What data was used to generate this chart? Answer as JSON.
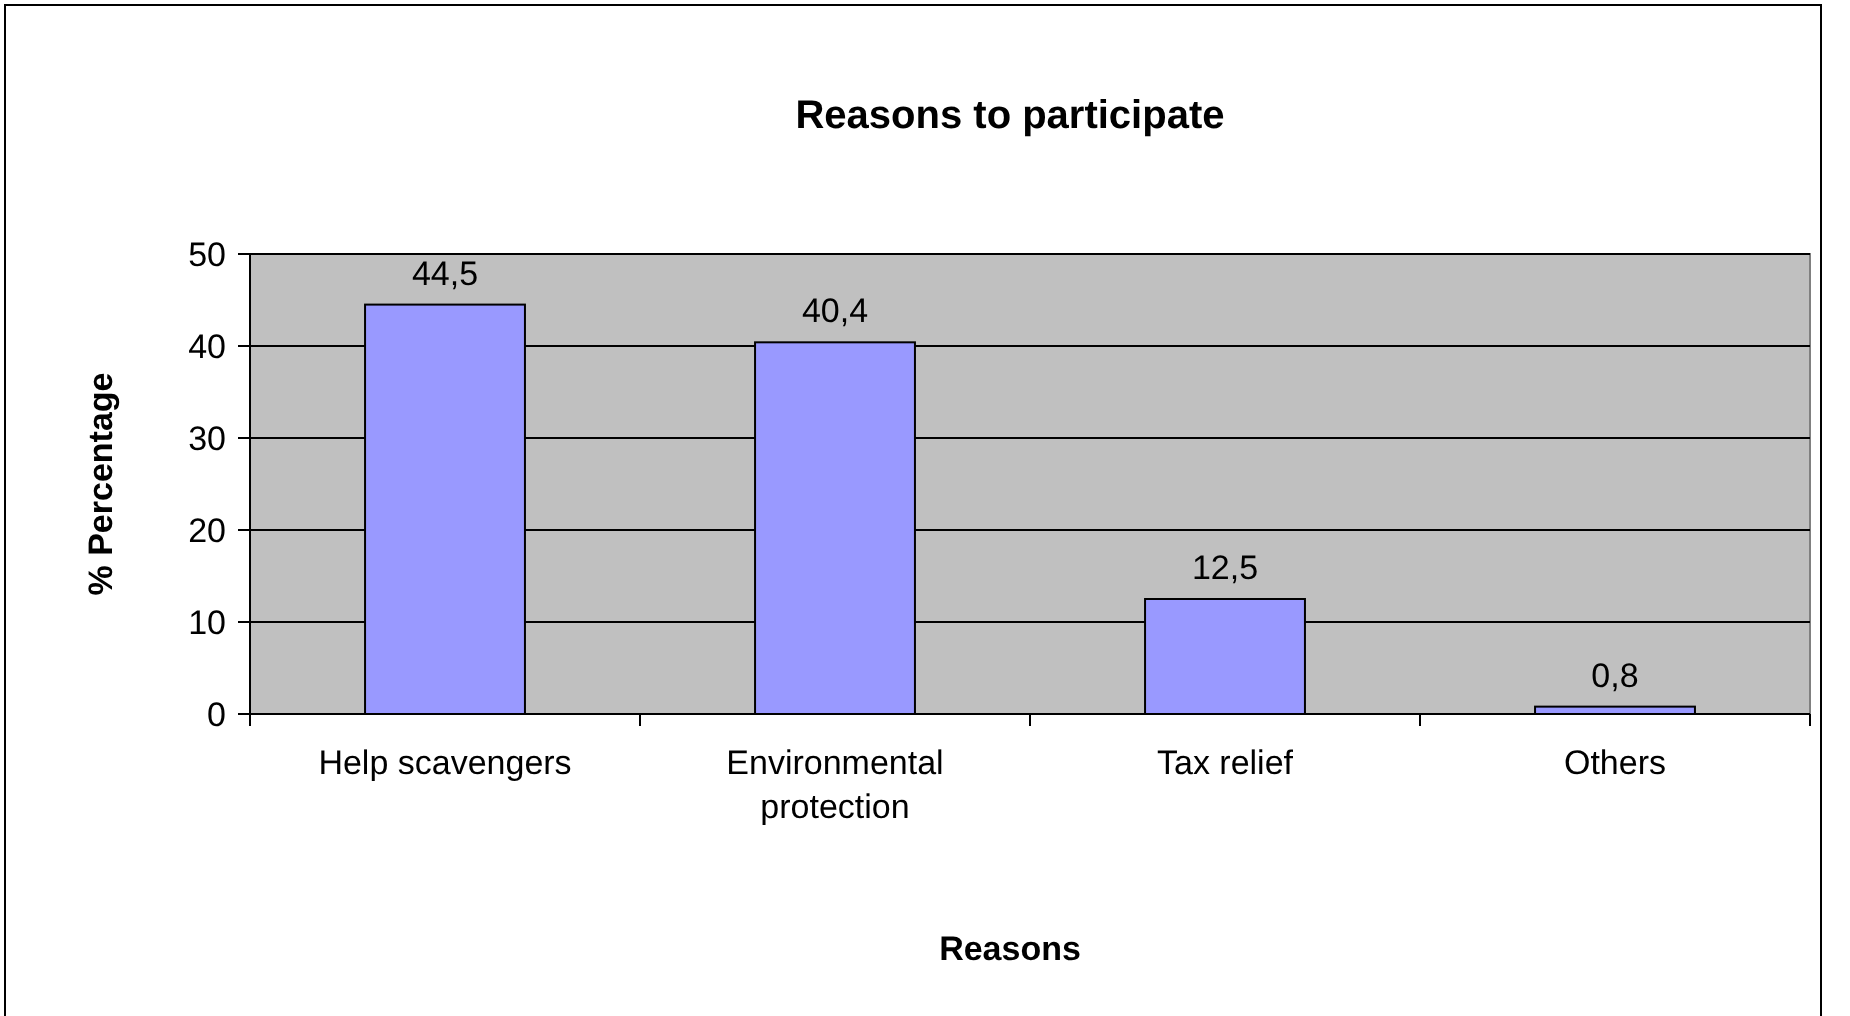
{
  "chart_data": {
    "type": "bar",
    "title": "Reasons to participate",
    "xlabel": "Reasons",
    "ylabel": "% Percentage",
    "categories": [
      "Help scavengers",
      "Environmental protection",
      "Tax relief",
      "Others"
    ],
    "values": [
      44.5,
      40.4,
      12.5,
      0.8
    ],
    "value_labels": [
      "44,5",
      "40,4",
      "12,5",
      "0,8"
    ],
    "color": "#9999ff",
    "ylim": [
      0,
      50
    ],
    "yticks": [
      0,
      10,
      20,
      30,
      40,
      50
    ],
    "grid": "y"
  }
}
